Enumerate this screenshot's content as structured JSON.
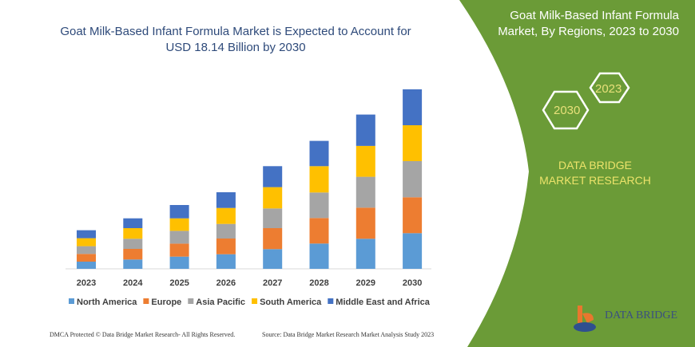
{
  "chart_data": {
    "type": "bar",
    "stacked": true,
    "title": "Goat Milk-Based Infant Formula Market is Expected to Account for USD 18.14 Billion by 2030",
    "categories": [
      "2023",
      "2024",
      "2025",
      "2026",
      "2027",
      "2028",
      "2029",
      "2030"
    ],
    "series": [
      {
        "name": "North America",
        "color": "#5b9bd5",
        "values": [
          9,
          11.7,
          15.3,
          18.3,
          24.7,
          31.7,
          37.7,
          44.7
        ]
      },
      {
        "name": "Europe",
        "color": "#ed7d31",
        "values": [
          9.7,
          13.3,
          16.3,
          19.7,
          26.3,
          32,
          39,
          45
        ]
      },
      {
        "name": "Asia Pacific",
        "color": "#a5a5a5",
        "values": [
          9.7,
          12.7,
          16,
          18.3,
          24.7,
          32,
          38.7,
          45.3
        ]
      },
      {
        "name": "South America",
        "color": "#ffc000",
        "values": [
          10,
          13.3,
          15.7,
          20,
          26.7,
          33,
          38.7,
          45
        ]
      },
      {
        "name": "Middle East and Africa",
        "color": "#4472c4",
        "values": [
          10,
          12.3,
          16.7,
          19.7,
          26.3,
          31.7,
          39.3,
          45
        ]
      }
    ],
    "y_axis_shown": false,
    "grid": false,
    "legend_placement": "bottom"
  },
  "panel": {
    "title": "Goat Milk-Based Infant Formula Market, By Regions, 2023 to 2030",
    "hex1": "2023",
    "hex2": "2030",
    "brand": "DATA BRIDGE MARKET RESEARCH",
    "logo_text": "DATA BRIDGE",
    "color": "#6b9b37"
  },
  "footer": {
    "left": "DMCA Protected © Data Bridge Market Research- All Rights Reserved.",
    "right": "Source: Data Bridge Market Research Market Analysis Study 2023"
  }
}
